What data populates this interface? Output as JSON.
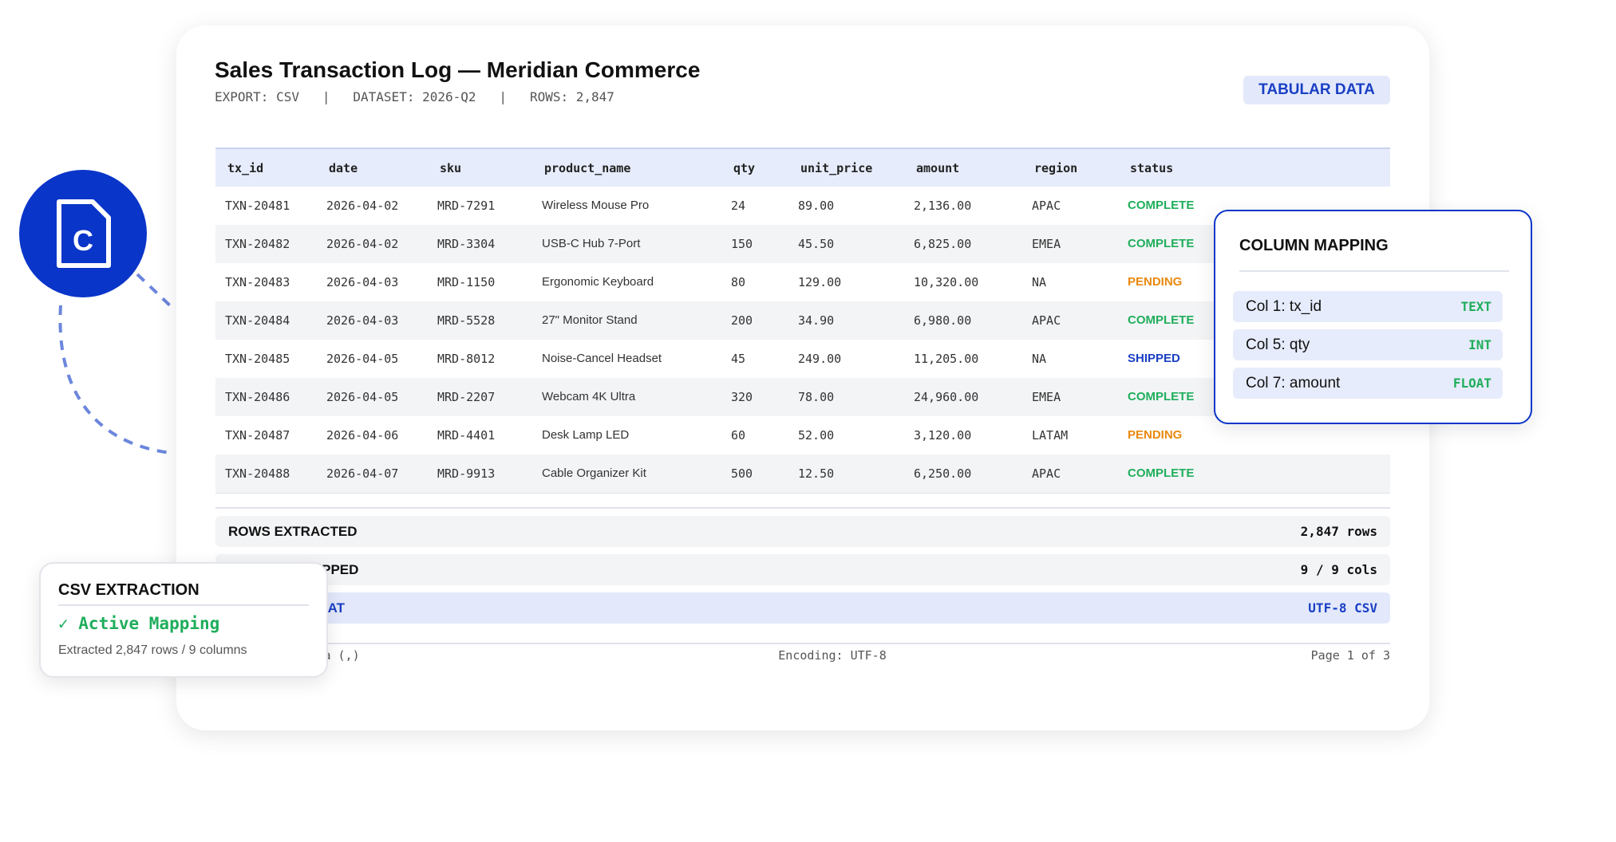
{
  "header": {
    "title": "Sales Transaction Log — Meridian Commerce",
    "subtitle": "EXPORT: CSV   |   DATASET: 2026-Q2   |   ROWS: 2,847",
    "tag": "TABULAR DATA"
  },
  "table": {
    "columns": [
      "tx_id",
      "date",
      "sku",
      "product_name",
      "qty",
      "unit_price",
      "amount",
      "region",
      "status"
    ],
    "rows": [
      [
        "TXN-20481",
        "2026-04-02",
        "MRD-7291",
        "Wireless Mouse Pro",
        "24",
        "89.00",
        "2,136.00",
        "APAC",
        "COMPLETE"
      ],
      [
        "TXN-20482",
        "2026-04-02",
        "MRD-3304",
        "USB-C Hub 7-Port",
        "150",
        "45.50",
        "6,825.00",
        "EMEA",
        "COMPLETE"
      ],
      [
        "TXN-20483",
        "2026-04-03",
        "MRD-1150",
        "Ergonomic Keyboard",
        "80",
        "129.00",
        "10,320.00",
        "NA",
        "PENDING"
      ],
      [
        "TXN-20484",
        "2026-04-03",
        "MRD-5528",
        "27\" Monitor Stand",
        "200",
        "34.90",
        "6,980.00",
        "APAC",
        "COMPLETE"
      ],
      [
        "TXN-20485",
        "2026-04-05",
        "MRD-8012",
        "Noise-Cancel Headset",
        "45",
        "249.00",
        "11,205.00",
        "NA",
        "SHIPPED"
      ],
      [
        "TXN-20486",
        "2026-04-05",
        "MRD-2207",
        "Webcam 4K Ultra",
        "320",
        "78.00",
        "24,960.00",
        "EMEA",
        "COMPLETE"
      ],
      [
        "TXN-20487",
        "2026-04-06",
        "MRD-4401",
        "Desk Lamp LED",
        "60",
        "52.00",
        "3,120.00",
        "LATAM",
        "PENDING"
      ],
      [
        "TXN-20488",
        "2026-04-07",
        "MRD-9913",
        "Cable Organizer Kit",
        "500",
        "12.50",
        "6,250.00",
        "APAC",
        "COMPLETE"
      ]
    ],
    "status_colors": {
      "COMPLETE": "#1fae5b",
      "PENDING": "#e8890c",
      "SHIPPED": "#1a3fc4"
    }
  },
  "summary": [
    {
      "label": "ROWS EXTRACTED",
      "value": "2,847 rows"
    },
    {
      "label": "COLUMNS MAPPED",
      "value": "9 / 9 cols"
    },
    {
      "label": "OUTPUT FORMAT",
      "value": "UTF-8 CSV"
    }
  ],
  "footer": {
    "left": "Delimiter: Comma (,)",
    "center": "Encoding: UTF-8",
    "right": "Page 1 of 3"
  },
  "column_mapping": {
    "title": "COLUMN MAPPING",
    "items": [
      {
        "label": "Col 1: tx_id",
        "type": "TEXT"
      },
      {
        "label": "Col 5: qty",
        "type": "INT"
      },
      {
        "label": "Col 7: amount",
        "type": "FLOAT"
      }
    ]
  },
  "extraction": {
    "title": "CSV EXTRACTION",
    "status": "✓ Active Mapping",
    "detail": "Extracted 2,847 rows / 9 columns"
  },
  "icon": {
    "letter": "C"
  }
}
